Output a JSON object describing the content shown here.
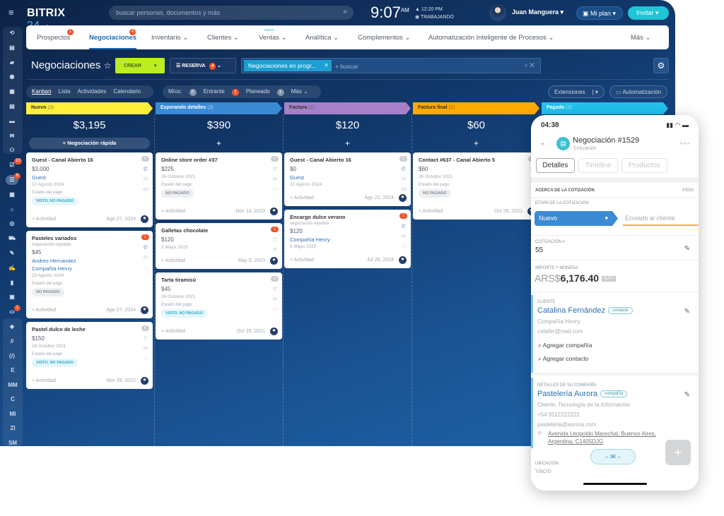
{
  "app": {
    "logo": "BITRIX",
    "logo_num": "24",
    "search_placeholder": "buscar personas, documentos y más",
    "time": "9:07",
    "ampm": "AM",
    "work_time": "12:20 PM",
    "work_status": "TRABAJANDO",
    "user": "Juan Manguera",
    "plan": "Mi plan",
    "invite": "Invitar"
  },
  "nav": {
    "items": [
      {
        "label": "Prospectos",
        "badge": "1"
      },
      {
        "label": "Negociaciones",
        "badge": "4",
        "active": true
      },
      {
        "label": "Inventario ⌄"
      },
      {
        "label": "Clientes ⌄"
      },
      {
        "label": "Ventas ⌄",
        "tag": "nuevo"
      },
      {
        "label": "Analítica ⌄"
      },
      {
        "label": "Complementos ⌄"
      },
      {
        "label": "Automatización Inteligente de Procesos ⌄"
      },
      {
        "label": "Más ⌄"
      }
    ]
  },
  "toolbar": {
    "title": "Negociaciones",
    "create": "CREAR",
    "reserve": "RESERVA",
    "reserve_count": "4",
    "filter_chip": "Negociaciones en progr...",
    "filter_placeholder": "+ buscar"
  },
  "views": [
    "Kanban",
    "Lista",
    "Actividades",
    "Calendario"
  ],
  "mine": {
    "label": "Míos:",
    "items": [
      {
        "count": "0",
        "label": "Entrante"
      },
      {
        "count": "3",
        "label": "Planeado"
      },
      {
        "count": "1",
        "label": "Más ⌄"
      }
    ]
  },
  "right_buttons": {
    "extensions": "Extensiones",
    "automation": "Automatización"
  },
  "sidebar": {
    "badges": {
      "inbox": "13",
      "filter": "6",
      "robot": "1"
    },
    "letters": [
      "E",
      "MM",
      "C",
      "MI",
      "ZI",
      "SM"
    ]
  },
  "colors": {
    "nuevo": "#ffee3a",
    "esperando": "#3b8ad4",
    "factura": "#a681c9",
    "final": "#ffaa00",
    "pagado": "#22c3ee"
  },
  "columns": [
    {
      "name": "Nuevo",
      "count": "(3)",
      "sum": "$3,195",
      "quick": "+ Negociación rápida",
      "color": "#ffee3a",
      "dark": true,
      "cards": [
        {
          "title": "Guest - Canal Abierto 16",
          "counter": "0",
          "amount": "$3,000",
          "links": [
            "Guest"
          ],
          "date": "12 Agosto 2024",
          "pay_label": "Estado del pago",
          "pay": "VISTO, NO PAGADO",
          "pay_type": "seen",
          "activity": "+ Actividad",
          "footer_date": "Ago 27, 2024",
          "phone": true,
          "chat": true
        },
        {
          "title": "Pasteles variados",
          "counter": "1",
          "hot": true,
          "sub": "negociación repetida",
          "amount": "$45",
          "links": [
            "Andres Hernandez",
            "Compañía Henry"
          ],
          "date": "22 Agosto 2024",
          "pay_label": "Estado del pago",
          "pay": "NO PAGADO",
          "pay_type": "unp",
          "activity": "+ Actividad",
          "footer_date": "Ago 27, 2024",
          "phone": true
        },
        {
          "title": "Pastel dulce de leche",
          "counter": "0",
          "amount": "$150",
          "date": "26 Octubre 2021",
          "pay_label": "Estado del pago",
          "pay": "VISTO, NO PAGADO",
          "pay_type": "seen",
          "activity": "+ Actividad",
          "footer_date": "Nov 29, 2022"
        }
      ]
    },
    {
      "name": "Esperando detalles",
      "count": "(3)",
      "sum": "$390",
      "quick": "+",
      "color": "#3b8ad4",
      "cards": [
        {
          "title": "Online store order #37",
          "counter": "0",
          "amount": "$225",
          "date": "26 Octubre 2021",
          "pay_label": "Estado del pago",
          "pay": "NO PAGADO",
          "pay_type": "unp",
          "activity": "+ Actividad",
          "footer_date": "Nov 14, 2023"
        },
        {
          "title": "Galletas chocolate",
          "counter": "1",
          "hot": true,
          "amount": "$120",
          "date": "5 Mayo 2023",
          "activity": "+ Actividad",
          "footer_date": "May 5, 2023"
        },
        {
          "title": "Tarta tiramisú",
          "counter": "0",
          "amount": "$45",
          "date": "26 Octubre 2021",
          "pay_label": "Estado del pago",
          "pay": "VISTO, NO PAGADO",
          "pay_type": "seen",
          "activity": "+ Actividad",
          "footer_date": "Oct 26, 2021"
        }
      ]
    },
    {
      "name": "Factura",
      "count": "(2)",
      "sum": "$120",
      "quick": "+",
      "color": "#a681c9",
      "dark": true,
      "cards": [
        {
          "title": "Guest - Canal Abierto 16",
          "counter": "0",
          "amount": "$0",
          "links": [
            "Guest"
          ],
          "date": "22 Agosto 2024",
          "activity": "+ Actividad",
          "footer_date": "Ago 22, 2024",
          "phone": true,
          "chat": true
        },
        {
          "title": "Encargo dulce verano",
          "counter": "1",
          "hot": true,
          "sub": "negociación repetida",
          "amount": "$120",
          "links": [
            "Compañía Henry"
          ],
          "date": "5 Mayo 2020",
          "activity": "+ Actividad",
          "footer_date": "Jul 26, 2024",
          "phone": true
        }
      ]
    },
    {
      "name": "Factura final",
      "count": "(1)",
      "sum": "$60",
      "quick": "+",
      "color": "#ffaa00",
      "dark": true,
      "cards": [
        {
          "title": "Contact #637 - Canal Abierto 5",
          "counter": "0",
          "amount": "$60",
          "date": "26 Octubre 2021",
          "pay_label": "Estado del pago",
          "pay": "NO PAGADO",
          "pay_type": "unp",
          "activity": "+ Actividad",
          "footer_date": "Oct 26, 2021"
        }
      ]
    },
    {
      "name": "Pagado",
      "count": "(2)",
      "sum": "",
      "quick": "",
      "color": "#22c3ee",
      "cards": []
    }
  ],
  "phone": {
    "time": "04:38",
    "title": "Negociación #1529",
    "subtitle": "Cotización",
    "tabs": [
      "Detalles",
      "Timeline",
      "Productos"
    ],
    "about": "ACERCA DE LA COTIZACIÓN",
    "edit": "editar",
    "stage_label": "ETAPA DE LA COTIZACIÓN",
    "stage": "Nuevo",
    "next_stage": "Enviado al cliente",
    "quote_label": "COTIZACIÓN #",
    "quote": "55",
    "amount_label": "IMPORTE Y MONEDA",
    "currency": "ARS$",
    "amount": "6,176.40",
    "auto": "AUTO",
    "client_label": "CLIENTE",
    "client": "Catalina Fernández",
    "client_tag": "contacto",
    "client_company": "Compañía Henry",
    "client_email": "catafer@mail.com",
    "add_company": "Agregar compañía",
    "add_contact": "Agregar contacto",
    "company_label": "DETALLES DE SU COMPAÑÍA",
    "company": "Pastelería Aurora",
    "company_tag": "compañía",
    "company_type": "Cliente, Tecnología de la Información",
    "company_phone": "+54 9112222222",
    "company_email": "pasteleria@aurora.com",
    "address1": "Avenida Leopoldo Marechal, Buenos Aires,",
    "address2": "Argentina, C1405DJG",
    "location_label": "UBICACIÓN",
    "location": "Vacío"
  }
}
